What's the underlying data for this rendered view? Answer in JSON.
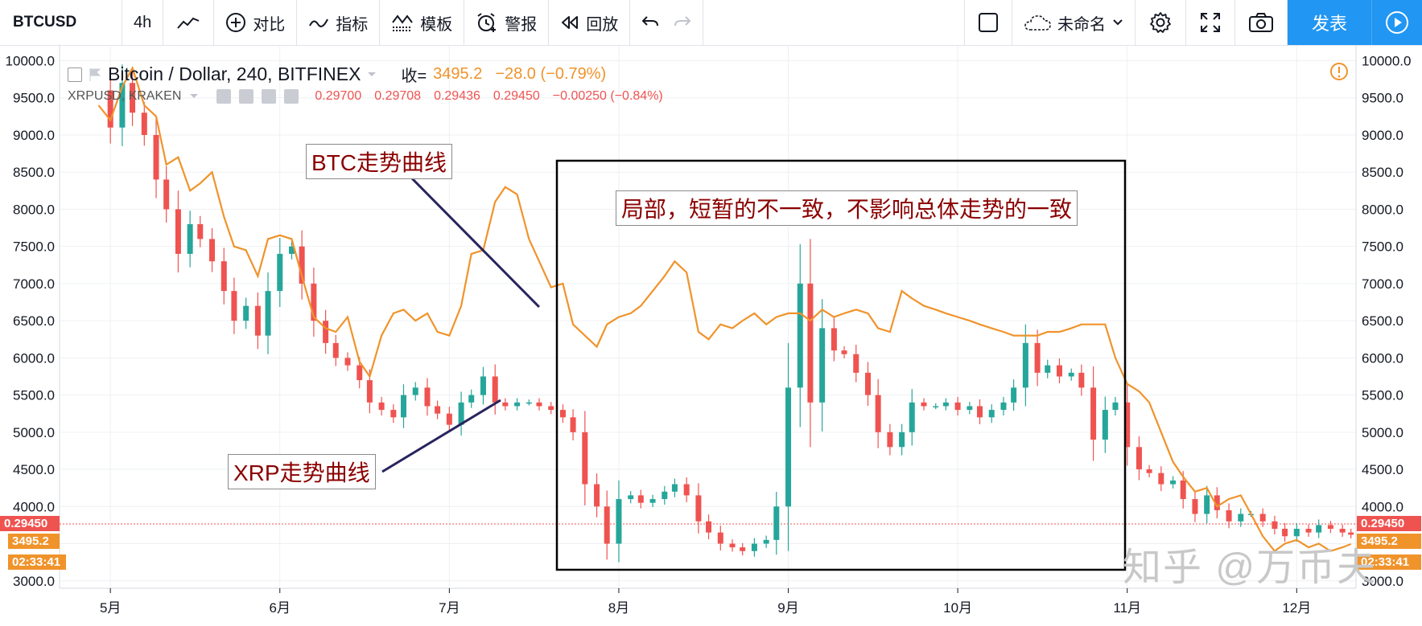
{
  "toolbar": {
    "symbol": "BTCUSD",
    "interval": "4h",
    "compare_label": "对比",
    "indicators_label": "指标",
    "templates_label": "模板",
    "alert_label": "警报",
    "replay_label": "回放",
    "layout_name": "未命名",
    "publish_label": "发表"
  },
  "legend": {
    "main_title": "Bitcoin / Dollar, 240, BITFINEX",
    "close_prefix": "收=",
    "close_value": "3495.2",
    "change": "−28.0 (−0.79%)",
    "compare_symbol": "XRPUSD, KRAKEN",
    "xrp_open": "0.29700",
    "xrp_high": "0.29708",
    "xrp_low": "0.29436",
    "xrp_close": "0.29450",
    "xrp_change": "−0.00250 (−0.84%)"
  },
  "annotations": {
    "btc_label": "BTC走势曲线",
    "xrp_label": "XRP走势曲线",
    "box_label": "局部，短暂的不一致，不影响总体走势的一致"
  },
  "price_tags": {
    "xrp_last": "0.29450",
    "btc_last": "3495.2",
    "countdown": "02:33:41"
  },
  "watermark": "知乎 @万币夫",
  "colors": {
    "btc_line": "#f0932b",
    "xrp_up": "#26a69a",
    "xrp_down": "#ef5350",
    "annotation_text": "#8b0000",
    "publish_bg": "#2196f3"
  },
  "chart_data": {
    "type": "line",
    "x_ticks": [
      "5月",
      "6月",
      "7月",
      "8月",
      "9月",
      "10月",
      "11月",
      "12月"
    ],
    "y_ticks": [
      "10000.0",
      "9500.0",
      "9000.0",
      "8500.0",
      "8000.0",
      "7500.0",
      "7000.0",
      "6500.0",
      "6000.0",
      "5500.0",
      "5000.0",
      "4500.0",
      "4000.0",
      "3500.0",
      "3000.0"
    ],
    "ylim": [
      2900,
      10200
    ],
    "xlim_months": [
      4.7,
      12.35
    ],
    "series": [
      {
        "name": "Bitcoin / Dollar",
        "x": [
          4.93,
          5.0,
          5.07,
          5.13,
          5.2,
          5.27,
          5.33,
          5.4,
          5.47,
          5.53,
          5.6,
          5.67,
          5.73,
          5.8,
          5.87,
          5.93,
          6.0,
          6.07,
          6.13,
          6.2,
          6.27,
          6.33,
          6.4,
          6.47,
          6.53,
          6.6,
          6.67,
          6.73,
          6.8,
          6.87,
          6.93,
          7.0,
          7.07,
          7.13,
          7.2,
          7.27,
          7.33,
          7.4,
          7.47,
          7.53,
          7.6,
          7.67,
          7.73,
          7.8,
          7.87,
          7.93,
          8.0,
          8.07,
          8.13,
          8.2,
          8.27,
          8.33,
          8.4,
          8.47,
          8.53,
          8.6,
          8.67,
          8.73,
          8.8,
          8.87,
          8.93,
          9.0,
          9.07,
          9.13,
          9.2,
          9.27,
          9.33,
          9.4,
          9.47,
          9.53,
          9.6,
          9.67,
          9.73,
          9.8,
          9.87,
          9.93,
          10.0,
          10.07,
          10.13,
          10.2,
          10.27,
          10.33,
          10.4,
          10.47,
          10.53,
          10.6,
          10.67,
          10.73,
          10.8,
          10.87,
          10.93,
          11.0,
          11.07,
          11.13,
          11.2,
          11.27,
          11.33,
          11.4,
          11.47,
          11.53,
          11.6,
          11.67,
          11.73,
          11.8,
          11.87,
          11.93,
          12.0,
          12.07,
          12.13,
          12.2,
          12.27,
          12.32
        ],
        "values": [
          9400,
          9200,
          9650,
          9900,
          9400,
          9250,
          8600,
          8700,
          8250,
          8350,
          8500,
          7900,
          7500,
          7450,
          7100,
          7600,
          7650,
          7600,
          7100,
          6550,
          6400,
          6350,
          6550,
          5950,
          5750,
          6300,
          6600,
          6650,
          6500,
          6600,
          6350,
          6300,
          6700,
          7400,
          7450,
          8100,
          8300,
          8200,
          7600,
          7300,
          6950,
          7000,
          6450,
          6300,
          6150,
          6450,
          6550,
          6600,
          6700,
          6900,
          7100,
          7300,
          7150,
          6350,
          6250,
          6450,
          6400,
          6500,
          6600,
          6450,
          6550,
          6600,
          6600,
          6500,
          6650,
          6550,
          6600,
          6650,
          6600,
          6400,
          6350,
          6900,
          6800,
          6700,
          6650,
          6600,
          6550,
          6500,
          6450,
          6400,
          6350,
          6300,
          6300,
          6300,
          6350,
          6350,
          6400,
          6450,
          6450,
          6450,
          6000,
          5650,
          5550,
          5400,
          5000,
          4600,
          4400,
          4200,
          4250,
          4000,
          4100,
          4150,
          3900,
          3600,
          3400,
          3500,
          3550,
          3450,
          3500,
          3400,
          3450,
          3495
        ]
      },
      {
        "name": "XRPUSD",
        "x": [
          4.93,
          5.0,
          5.07,
          5.13,
          5.2,
          5.27,
          5.33,
          5.4,
          5.47,
          5.53,
          5.6,
          5.67,
          5.73,
          5.8,
          5.87,
          5.93,
          6.0,
          6.07,
          6.13,
          6.2,
          6.27,
          6.33,
          6.4,
          6.47,
          6.53,
          6.6,
          6.67,
          6.73,
          6.8,
          6.87,
          6.93,
          7.0,
          7.07,
          7.13,
          7.2,
          7.27,
          7.33,
          7.4,
          7.47,
          7.53,
          7.6,
          7.67,
          7.73,
          7.8,
          7.87,
          7.93,
          8.0,
          8.07,
          8.13,
          8.2,
          8.27,
          8.33,
          8.4,
          8.47,
          8.53,
          8.6,
          8.67,
          8.73,
          8.8,
          8.87,
          8.93,
          9.0,
          9.07,
          9.13,
          9.2,
          9.27,
          9.33,
          9.4,
          9.47,
          9.53,
          9.6,
          9.67,
          9.73,
          9.8,
          9.87,
          9.93,
          10.0,
          10.07,
          10.13,
          10.2,
          10.27,
          10.33,
          10.4,
          10.47,
          10.53,
          10.6,
          10.67,
          10.73,
          10.8,
          10.87,
          10.93,
          11.0,
          11.07,
          11.13,
          11.2,
          11.27,
          11.33,
          11.4,
          11.47,
          11.53,
          11.6,
          11.67,
          11.73,
          11.8,
          11.87,
          11.93,
          12.0,
          12.07,
          12.13,
          12.2,
          12.27,
          12.32
        ],
        "values": [
          9600,
          9100,
          9700,
          9300,
          9000,
          8400,
          8000,
          7400,
          7800,
          7600,
          7300,
          6900,
          6500,
          6700,
          6300,
          6900,
          7400,
          7500,
          7000,
          6500,
          6200,
          6000,
          5900,
          5700,
          5400,
          5300,
          5200,
          5500,
          5600,
          5350,
          5250,
          5100,
          5400,
          5500,
          5750,
          5400,
          5350,
          5400,
          5400,
          5350,
          5300,
          5200,
          5000,
          4300,
          4000,
          3500,
          4100,
          4150,
          4050,
          4100,
          4200,
          4300,
          4150,
          3800,
          3650,
          3500,
          3450,
          3400,
          3500,
          3550,
          4000,
          5600,
          7000,
          5400,
          6400,
          6100,
          6050,
          5800,
          5500,
          5000,
          4800,
          5000,
          5400,
          5350,
          5350,
          5400,
          5300,
          5350,
          5200,
          5300,
          5400,
          5600,
          6200,
          5800,
          5900,
          5750,
          5800,
          5600,
          4900,
          5300,
          5400,
          4800,
          4500,
          4450,
          4300,
          4350,
          4100,
          3900,
          4150,
          3950,
          3800,
          3900,
          3900,
          3800,
          3700,
          3600,
          3700,
          3650,
          3750,
          3700,
          3650,
          3620
        ]
      }
    ],
    "grid": true,
    "legend_position": "top-left"
  }
}
